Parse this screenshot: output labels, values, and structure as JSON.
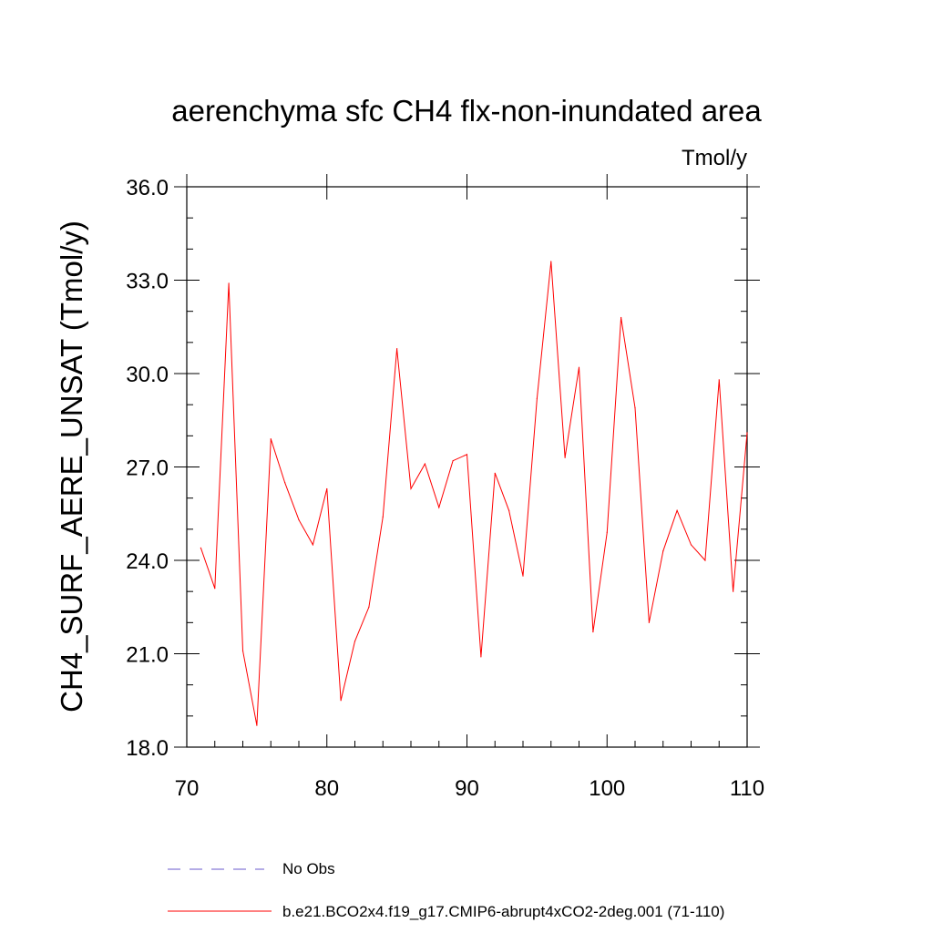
{
  "chart_data": {
    "type": "line",
    "title": "aerenchyma sfc CH4 flx-non-inundated area",
    "units_label": "Tmol/y",
    "ylabel": "CH4_SURF_AERE_UNSAT  (Tmol/y)",
    "xlabel": "",
    "xlim": [
      70,
      110
    ],
    "ylim": [
      18.0,
      36.0
    ],
    "xticks": [
      70,
      80,
      90,
      100,
      110
    ],
    "yticks": [
      18.0,
      21.0,
      24.0,
      27.0,
      30.0,
      33.0,
      36.0
    ],
    "xtick_labels": [
      "70",
      "80",
      "90",
      "100",
      "110"
    ],
    "ytick_labels": [
      "18.0",
      "21.0",
      "24.0",
      "27.0",
      "30.0",
      "33.0",
      "36.0"
    ],
    "series": [
      {
        "name": "b.e21.BCO2x4.f19_g17.CMIP6-abrupt4xCO2-2deg.001 (71-110)",
        "color": "#ff0000",
        "x": [
          71,
          72,
          73,
          74,
          75,
          76,
          77,
          78,
          79,
          80,
          81,
          82,
          83,
          84,
          85,
          86,
          87,
          88,
          89,
          90,
          91,
          92,
          93,
          94,
          95,
          96,
          97,
          98,
          99,
          100,
          101,
          102,
          103,
          104,
          105,
          106,
          107,
          108,
          109,
          110
        ],
        "y": [
          24.4,
          23.1,
          32.9,
          21.1,
          18.7,
          27.9,
          26.5,
          25.3,
          24.5,
          26.3,
          19.5,
          21.4,
          22.5,
          25.4,
          30.8,
          26.3,
          27.1,
          25.7,
          27.2,
          27.4,
          20.9,
          26.8,
          25.6,
          23.5,
          29.2,
          33.6,
          27.3,
          30.2,
          21.7,
          24.9,
          31.8,
          28.9,
          22.0,
          24.3,
          25.6,
          24.5,
          24.0,
          29.8,
          23.0,
          28.1
        ]
      }
    ],
    "legend": [
      {
        "label": "No Obs",
        "color": "#6a5acd",
        "style": "dashed"
      },
      {
        "label": "b.e21.BCO2x4.f19_g17.CMIP6-abrupt4xCO2-2deg.001 (71-110)",
        "color": "#ff0000",
        "style": "solid"
      }
    ]
  }
}
